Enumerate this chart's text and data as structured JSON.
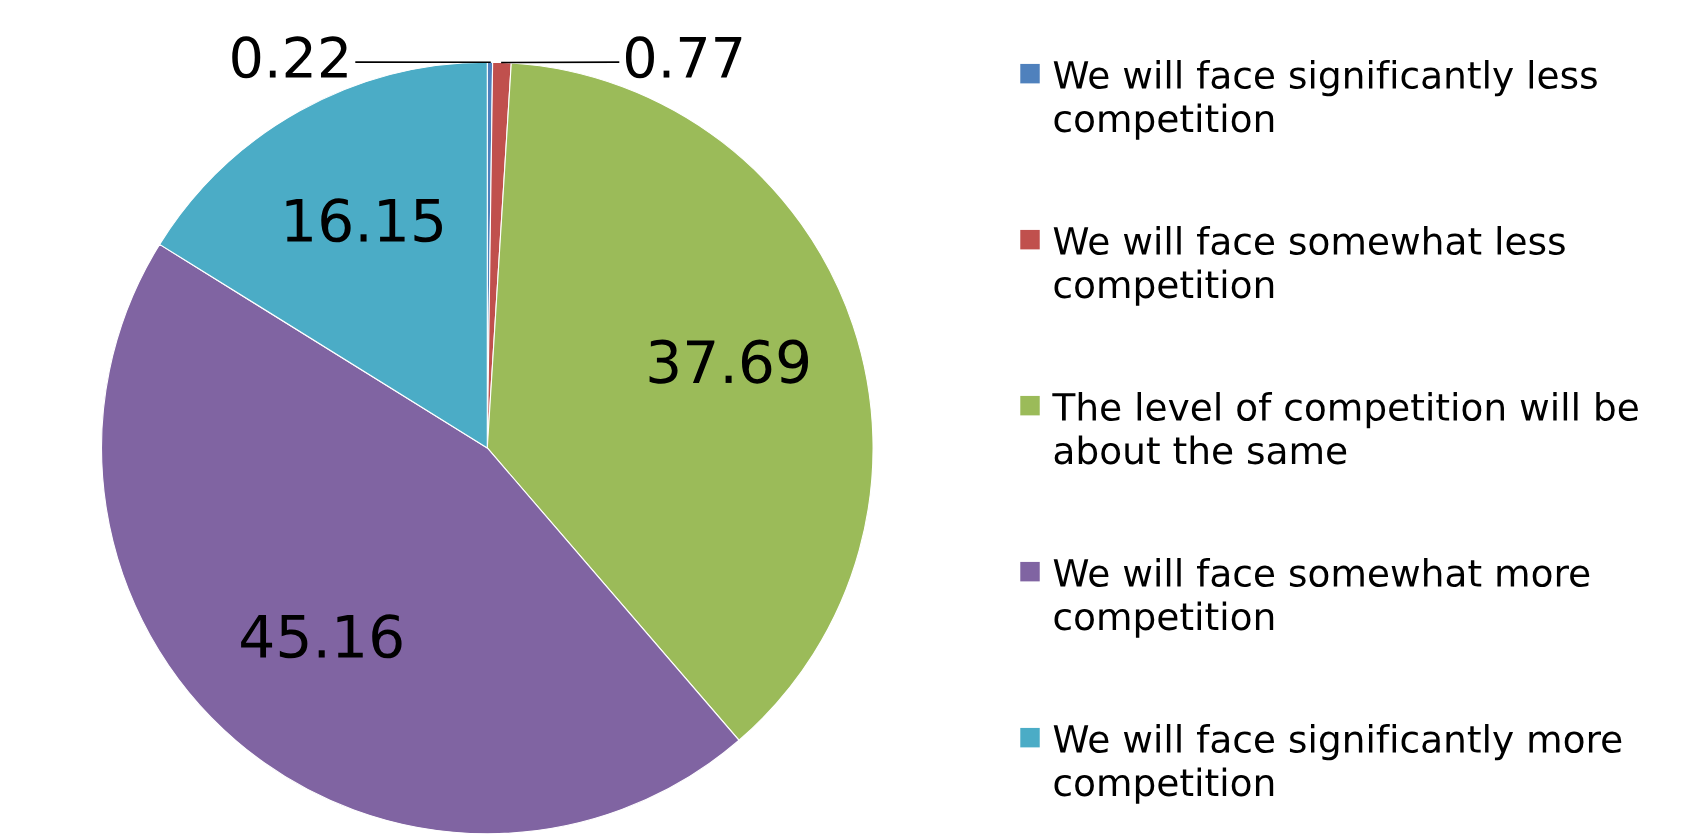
{
  "chart_data": {
    "type": "pie",
    "categories": [
      "We will face significantly less competition",
      "We will face somewhat less competition",
      "The level of competition will be about the same",
      "We will face somewhat more competition",
      "We will face significantly more competition"
    ],
    "values": [
      0.22,
      0.77,
      37.69,
      45.16,
      16.15
    ],
    "colors": [
      "#4f81bd",
      "#c0504d",
      "#9bbb59",
      "#8064a2",
      "#4bacc6"
    ],
    "data_labels": true,
    "legend": "right"
  }
}
